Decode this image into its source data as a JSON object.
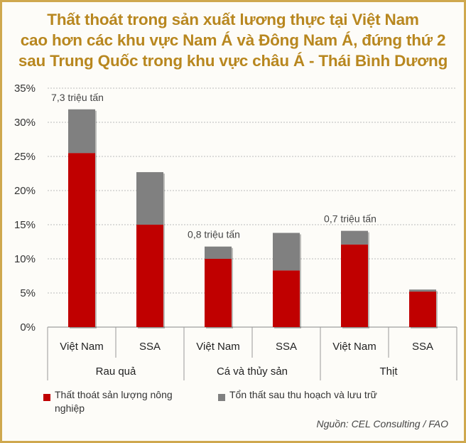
{
  "title_lines": [
    "Thất thoát trong sản xuất lương thực tại Việt Nam",
    "cao hơn các khu vực Nam Á và Đông Nam Á, đứng thứ 2",
    "sau Trung Quốc trong khu vực châu Á - Thái Bình Dương"
  ],
  "source": "Nguồn: CEL Consulting / FAO",
  "colors": {
    "series1": "#c00000",
    "series2": "#808080",
    "title": "#b8871f",
    "border": "#cfa84e"
  },
  "chart_data": {
    "type": "bar",
    "stacked": true,
    "ylim": [
      0,
      35
    ],
    "yticks": [
      "0%",
      "5%",
      "10%",
      "15%",
      "20%",
      "25%",
      "30%",
      "35%"
    ],
    "groups": [
      "Rau quả",
      "Cá và thủy sản",
      "Thịt"
    ],
    "categories": [
      "Việt Nam",
      "SSA",
      "Việt Nam",
      "SSA",
      "Việt Nam",
      "SSA"
    ],
    "series": [
      {
        "name": "Thất thoát sản lượng nông nghiệp",
        "values": [
          25.5,
          15.0,
          10.0,
          8.3,
          12.1,
          5.2
        ]
      },
      {
        "name": "Tổn thất sau thu hoạch và lưu trữ",
        "values": [
          6.4,
          7.7,
          1.8,
          5.5,
          2.0,
          0.3
        ]
      }
    ],
    "annotations": [
      {
        "bar": 0,
        "text": "7,3 triệu tấn"
      },
      {
        "bar": 2,
        "text": "0,8 triệu tấn"
      },
      {
        "bar": 4,
        "text": "0,7 triệu tấn"
      }
    ],
    "grid": true,
    "legend": "bottom"
  }
}
